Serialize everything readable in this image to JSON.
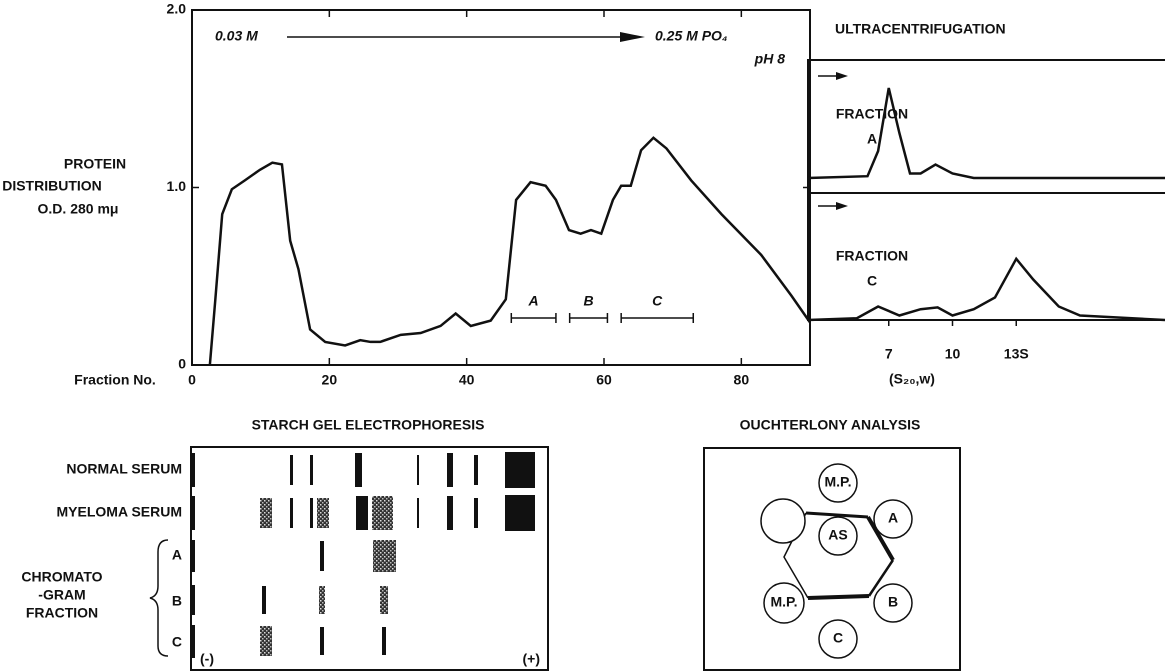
{
  "chart_data": [
    {
      "type": "line",
      "ylabel": [
        "PROTEIN",
        "DISTRIBUTION",
        "O.D. 280 mμ"
      ],
      "xlabel": "Fraction No.",
      "annotations": {
        "start": "0.03 M",
        "end": "0.25 M PO₄",
        "ph": "pH 8"
      },
      "x": [
        2.6,
        3.4,
        4.4,
        5.8,
        7.7,
        9.9,
        11.7,
        13.1,
        14.3,
        15.5,
        17.2,
        19.4,
        22.3,
        24.5,
        26,
        27.4,
        30.4,
        33.3,
        36.2,
        38.4,
        40.6,
        43.5,
        45.7,
        47.2,
        49.3,
        51.5,
        53,
        54.9,
        56.6,
        58.1,
        59.6,
        61.3,
        62.5,
        63.9,
        65.4,
        67.2,
        69.1,
        72.7,
        77.1,
        82.9,
        87.3,
        90
      ],
      "values": [
        0,
        0.37,
        0.85,
        0.99,
        1.04,
        1.1,
        1.14,
        1.13,
        0.7,
        0.54,
        0.2,
        0.13,
        0.11,
        0.14,
        0.13,
        0.13,
        0.17,
        0.18,
        0.22,
        0.29,
        0.22,
        0.25,
        0.37,
        0.93,
        1.03,
        1.01,
        0.93,
        0.76,
        0.74,
        0.76,
        0.74,
        0.93,
        1.01,
        1.01,
        1.21,
        1.28,
        1.22,
        1.04,
        0.85,
        0.62,
        0.39,
        0.24
      ],
      "color": "#111111",
      "xlim": [
        0,
        90
      ],
      "ylim": [
        0,
        2
      ],
      "xticks": [
        0,
        20,
        40,
        60,
        80
      ],
      "yticks": [
        0,
        {
          "value": 1,
          "label": "1.0"
        },
        {
          "value": 2,
          "label": "2.0"
        }
      ],
      "ranges": [
        {
          "label": "A",
          "x": [
            46.5,
            53
          ]
        },
        {
          "label": "B",
          "x": [
            55,
            60.5
          ]
        },
        {
          "label": "C",
          "x": [
            62.5,
            73
          ]
        }
      ]
    },
    {
      "type": "line",
      "title": "ULTRACENTRIFUGATION",
      "xlabel": "(S₂₀,w)",
      "xlim": [
        3.2,
        20
      ],
      "ylim": [
        0,
        1
      ],
      "xticks": [
        7,
        10,
        {
          "value": 13,
          "label": "13S"
        }
      ],
      "color": "#111111",
      "panels": [
        {
          "label": [
            "FRACTION",
            "A"
          ],
          "x": [
            3.2,
            6,
            6.5,
            7,
            7.5,
            8,
            8.5,
            9.2,
            10,
            11,
            20
          ],
          "values": [
            0,
            0.02,
            0.3,
            1,
            0.5,
            0.05,
            0.05,
            0.15,
            0.05,
            0,
            0
          ]
        },
        {
          "label": [
            "FRACTION",
            "C"
          ],
          "x": [
            3.2,
            5.5,
            6.5,
            7.5,
            8.5,
            9.3,
            10,
            11,
            12,
            13,
            13.8,
            15,
            16,
            20
          ],
          "values": [
            0,
            0.02,
            0.15,
            0.05,
            0.12,
            0.14,
            0.05,
            0.12,
            0.25,
            0.68,
            0.45,
            0.15,
            0.05,
            0
          ]
        }
      ]
    }
  ],
  "gel": {
    "title": "STARCH GEL ELECTROPHORESIS",
    "rows": [
      "NORMAL SERUM",
      "MYELOMA SERUM",
      "A",
      "B",
      "C"
    ],
    "group": [
      "CHROMATO",
      "-GRAM",
      "FRACTION"
    ],
    "poles": [
      "(-)",
      "(+)"
    ]
  },
  "ouchterlony": {
    "title": "OUCHTERLONY ANALYSIS",
    "wells": [
      "M.P.",
      "A",
      "AS",
      "B",
      "C",
      "M.P."
    ]
  }
}
